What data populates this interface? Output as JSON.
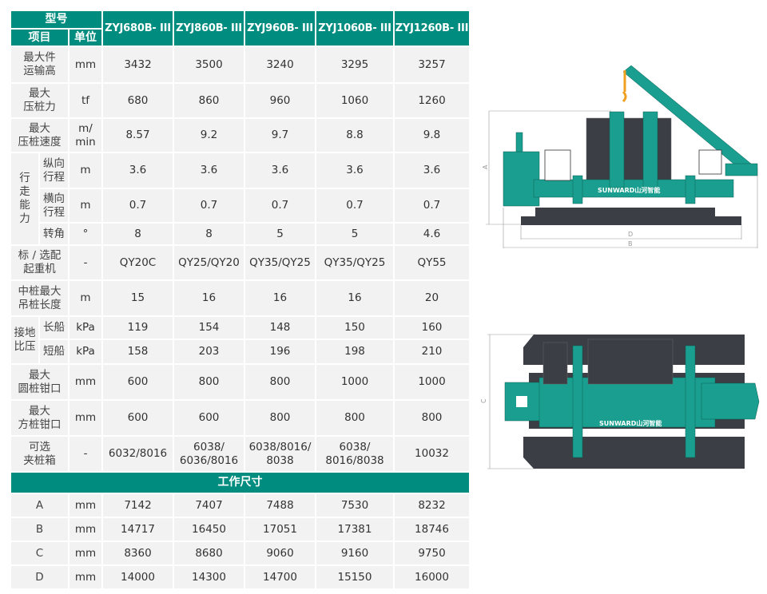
{
  "header": {
    "model_label": "型号",
    "item_label": "项目",
    "unit_label": "单位",
    "models": [
      "ZYJ680B- III",
      "ZYJ860B- III",
      "ZYJ960B- III",
      "ZYJ1060B- III",
      "ZYJ1260B- III"
    ]
  },
  "rows": [
    {
      "label": "最大件\n运输高",
      "unit": "mm",
      "values": [
        "3432",
        "3500",
        "3240",
        "3295",
        "3257"
      ]
    },
    {
      "label": "最大\n压桩力",
      "unit": "tf",
      "values": [
        "680",
        "860",
        "960",
        "1060",
        "1260"
      ]
    },
    {
      "label": "最大\n压桩速度",
      "unit": "m/\nmin",
      "values": [
        "8.57",
        "9.2",
        "9.7",
        "8.8",
        "9.8"
      ]
    },
    {
      "group": "行走能力",
      "style": "vert",
      "sub": [
        {
          "label": "纵向\n行程",
          "unit": "m",
          "values": [
            "3.6",
            "3.6",
            "3.6",
            "3.6",
            "3.6"
          ]
        },
        {
          "label": "横向\n行程",
          "unit": "m",
          "values": [
            "0.7",
            "0.7",
            "0.7",
            "0.7",
            "0.7"
          ]
        },
        {
          "label": "转角",
          "unit": "°",
          "values": [
            "8",
            "8",
            "5",
            "5",
            "4.6"
          ]
        }
      ]
    },
    {
      "label": "标 / 选配\n起重机",
      "unit": "-",
      "values": [
        "QY20C",
        "QY25/QY20",
        "QY35/QY25",
        "QY35/QY25",
        "QY55"
      ]
    },
    {
      "label": "中桩最大\n吊桩长度",
      "unit": "m",
      "values": [
        "15",
        "16",
        "16",
        "16",
        "20"
      ]
    },
    {
      "group": "接地比压",
      "style": "two",
      "sub": [
        {
          "label": "长船",
          "unit": "kPa",
          "values": [
            "119",
            "154",
            "148",
            "150",
            "160"
          ]
        },
        {
          "label": "短船",
          "unit": "kPa",
          "values": [
            "158",
            "203",
            "196",
            "198",
            "210"
          ]
        }
      ]
    },
    {
      "label": "最大\n圆桩钳口",
      "unit": "mm",
      "values": [
        "600",
        "800",
        "800",
        "1000",
        "1000"
      ]
    },
    {
      "label": "最大\n方桩钳口",
      "unit": "mm",
      "values": [
        "600",
        "600",
        "800",
        "800",
        "800"
      ]
    },
    {
      "label": "可选\n夹桩箱",
      "unit": "-",
      "values": [
        "6032/8016",
        "6038/\n6036/8016",
        "6038/8016/\n8038",
        "6038/\n8016/8038",
        "10032"
      ]
    }
  ],
  "section_title": "工作尺寸",
  "dimensions": [
    {
      "label": "A",
      "unit": "mm",
      "values": [
        "7142",
        "7407",
        "7488",
        "7530",
        "8232"
      ]
    },
    {
      "label": "B",
      "unit": "mm",
      "values": [
        "14717",
        "16450",
        "17051",
        "17381",
        "18746"
      ]
    },
    {
      "label": "C",
      "unit": "mm",
      "values": [
        "8360",
        "8680",
        "9060",
        "9160",
        "9750"
      ]
    },
    {
      "label": "D",
      "unit": "mm",
      "values": [
        "14000",
        "14300",
        "14700",
        "15150",
        "16000"
      ]
    }
  ],
  "drawings": {
    "brand": "SUNWARD山河智能",
    "dim_labels": {
      "a": "A",
      "b": "B",
      "c": "C",
      "d": "D"
    },
    "colors": {
      "teal": "#1a9e8f",
      "dark": "#3b3f45",
      "accent": "#f0a020"
    }
  }
}
